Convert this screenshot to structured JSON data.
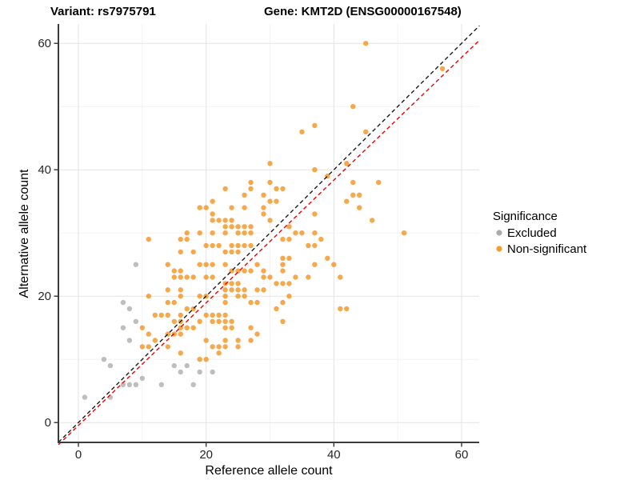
{
  "header": {
    "variant_title": "Variant: rs7975791",
    "gene_title": "Gene: KMT2D (ENSG00000167548)"
  },
  "chart_data": {
    "type": "scatter",
    "xlabel": "Reference allele count",
    "ylabel": "Alternative allele count",
    "xlim": [
      -3.15,
      63.15
    ],
    "ylim": [
      -3.15,
      63.15
    ],
    "x_ticks": [
      0,
      20,
      40,
      60
    ],
    "y_ticks": [
      0,
      20,
      40,
      60
    ],
    "x_minor_ticks": [
      10,
      30,
      50
    ],
    "y_minor_ticks": [
      10,
      30,
      50
    ],
    "grid": true,
    "legend": {
      "title": "Significance",
      "position": "right",
      "entries": [
        {
          "label": "Excluded",
          "color": "#A3A3A3"
        },
        {
          "label": "Non-significant",
          "color": "#F59016"
        }
      ]
    },
    "reference_lines": [
      {
        "name": "identity-line",
        "style": "dashed",
        "color": "#1A1A1A",
        "x1": -3.13,
        "y1": -3.13,
        "x2": 62.8,
        "y2": 62.8
      },
      {
        "name": "fitted-line",
        "style": "dashed",
        "color": "#EE0000",
        "x1": -3.13,
        "y1": -3.5,
        "x2": 62.8,
        "y2": 60.5
      }
    ],
    "series": [
      {
        "name": "Excluded",
        "color": "#A3A3A3",
        "points": [
          [
            1,
            4
          ],
          [
            4,
            10
          ],
          [
            5,
            9
          ],
          [
            5,
            4
          ],
          [
            7,
            6
          ],
          [
            7,
            15
          ],
          [
            7,
            19
          ],
          [
            8,
            6
          ],
          [
            8,
            13
          ],
          [
            8,
            18
          ],
          [
            9,
            6
          ],
          [
            9,
            16
          ],
          [
            9,
            25
          ],
          [
            10,
            7
          ],
          [
            13,
            6
          ],
          [
            15,
            9
          ],
          [
            16,
            8
          ],
          [
            17,
            9
          ],
          [
            18,
            6
          ],
          [
            19,
            8
          ],
          [
            21,
            8
          ]
        ]
      },
      {
        "name": "Non-significant",
        "color": "#F59016",
        "points": [
          [
            45,
            60
          ],
          [
            57,
            56
          ],
          [
            43,
            50
          ],
          [
            37,
            47
          ],
          [
            35,
            46
          ],
          [
            45,
            46
          ],
          [
            30,
            41
          ],
          [
            42,
            41
          ],
          [
            37,
            40
          ],
          [
            39,
            39
          ],
          [
            27,
            38
          ],
          [
            30,
            38
          ],
          [
            43,
            38
          ],
          [
            47,
            38
          ],
          [
            23,
            37
          ],
          [
            27,
            37
          ],
          [
            31,
            37
          ],
          [
            32,
            37
          ],
          [
            26,
            36
          ],
          [
            29,
            36
          ],
          [
            43,
            36
          ],
          [
            44,
            36
          ],
          [
            21,
            35
          ],
          [
            30,
            35
          ],
          [
            31,
            35
          ],
          [
            42,
            35
          ],
          [
            19,
            34
          ],
          [
            20,
            34
          ],
          [
            24,
            34
          ],
          [
            26,
            34
          ],
          [
            29,
            34
          ],
          [
            44,
            34
          ],
          [
            21,
            33
          ],
          [
            29,
            33
          ],
          [
            37,
            33
          ],
          [
            21,
            32
          ],
          [
            22,
            32
          ],
          [
            23,
            32
          ],
          [
            24,
            32
          ],
          [
            30,
            32
          ],
          [
            46,
            32
          ],
          [
            23,
            31
          ],
          [
            24,
            31
          ],
          [
            25,
            31
          ],
          [
            26,
            31
          ],
          [
            27,
            31
          ],
          [
            33,
            31
          ],
          [
            17,
            30
          ],
          [
            19,
            30
          ],
          [
            21,
            30
          ],
          [
            23,
            30
          ],
          [
            25,
            30
          ],
          [
            26,
            30
          ],
          [
            27,
            30
          ],
          [
            34,
            30
          ],
          [
            35,
            30
          ],
          [
            37,
            30
          ],
          [
            51,
            30
          ],
          [
            11,
            29
          ],
          [
            16,
            29
          ],
          [
            17,
            29
          ],
          [
            32,
            29
          ],
          [
            33,
            29
          ],
          [
            38,
            29
          ],
          [
            20,
            28
          ],
          [
            21,
            28
          ],
          [
            22,
            28
          ],
          [
            24,
            28
          ],
          [
            25,
            28
          ],
          [
            26,
            28
          ],
          [
            27,
            28
          ],
          [
            36,
            28
          ],
          [
            37,
            28
          ],
          [
            16,
            27
          ],
          [
            18,
            27
          ],
          [
            23,
            27
          ],
          [
            24,
            27
          ],
          [
            25,
            27
          ],
          [
            32,
            26
          ],
          [
            33,
            26
          ],
          [
            39,
            26
          ],
          [
            14,
            25
          ],
          [
            19,
            25
          ],
          [
            20,
            25
          ],
          [
            21,
            25
          ],
          [
            23,
            25
          ],
          [
            28,
            25
          ],
          [
            32,
            25
          ],
          [
            37,
            25
          ],
          [
            40,
            25
          ],
          [
            15,
            24
          ],
          [
            16,
            24
          ],
          [
            24,
            24
          ],
          [
            25,
            24
          ],
          [
            26,
            24
          ],
          [
            27,
            24
          ],
          [
            29,
            24
          ],
          [
            32,
            24
          ],
          [
            15,
            23
          ],
          [
            16,
            23
          ],
          [
            17,
            23
          ],
          [
            18,
            23
          ],
          [
            20,
            23
          ],
          [
            21,
            23
          ],
          [
            29,
            23
          ],
          [
            30,
            23
          ],
          [
            34,
            23
          ],
          [
            36,
            23
          ],
          [
            41,
            23
          ],
          [
            23,
            22
          ],
          [
            24,
            22
          ],
          [
            25,
            22
          ],
          [
            31,
            22
          ],
          [
            32,
            22
          ],
          [
            33,
            22
          ],
          [
            14,
            21
          ],
          [
            16,
            21
          ],
          [
            23,
            21
          ],
          [
            24,
            21
          ],
          [
            25,
            21
          ],
          [
            26,
            21
          ],
          [
            28,
            21
          ],
          [
            29,
            21
          ],
          [
            11,
            20
          ],
          [
            16,
            20
          ],
          [
            19,
            20
          ],
          [
            20,
            20
          ],
          [
            23,
            20
          ],
          [
            25,
            20
          ],
          [
            26,
            20
          ],
          [
            33,
            20
          ],
          [
            14,
            19
          ],
          [
            15,
            19
          ],
          [
            23,
            19
          ],
          [
            27,
            19
          ],
          [
            28,
            19
          ],
          [
            32,
            19
          ],
          [
            17,
            18
          ],
          [
            18,
            18
          ],
          [
            31,
            18
          ],
          [
            41,
            18
          ],
          [
            42,
            18
          ],
          [
            12,
            17
          ],
          [
            13,
            17
          ],
          [
            14,
            17
          ],
          [
            16,
            17
          ],
          [
            20,
            17
          ],
          [
            21,
            17
          ],
          [
            22,
            17
          ],
          [
            23,
            17
          ],
          [
            15,
            16
          ],
          [
            16,
            16
          ],
          [
            19,
            16
          ],
          [
            21,
            16
          ],
          [
            22,
            16
          ],
          [
            23,
            16
          ],
          [
            24,
            16
          ],
          [
            32,
            16
          ],
          [
            10,
            15
          ],
          [
            16,
            15
          ],
          [
            17,
            15
          ],
          [
            18,
            15
          ],
          [
            23,
            15
          ],
          [
            24,
            15
          ],
          [
            27,
            15
          ],
          [
            11,
            14
          ],
          [
            14,
            14
          ],
          [
            15,
            14
          ],
          [
            16,
            14
          ],
          [
            28,
            14
          ],
          [
            12,
            13
          ],
          [
            20,
            13
          ],
          [
            23,
            13
          ],
          [
            25,
            13
          ],
          [
            27,
            13
          ],
          [
            10,
            12
          ],
          [
            11,
            12
          ],
          [
            14,
            12
          ],
          [
            21,
            12
          ],
          [
            22,
            12
          ],
          [
            23,
            12
          ],
          [
            25,
            12
          ],
          [
            16,
            11
          ],
          [
            22,
            11
          ],
          [
            19,
            10
          ],
          [
            20,
            10
          ]
        ]
      }
    ]
  }
}
